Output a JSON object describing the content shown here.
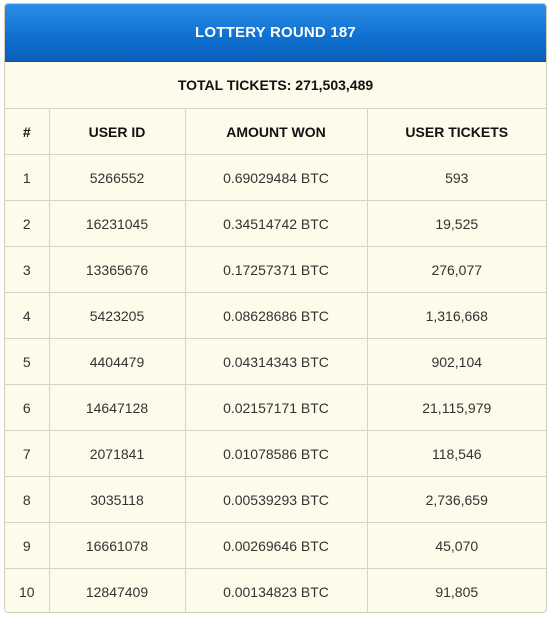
{
  "header": {
    "title": "LOTTERY ROUND 187"
  },
  "summary": {
    "total_tickets": "TOTAL TICKETS: 271,503,489"
  },
  "table": {
    "columns": [
      "#",
      "USER ID",
      "AMOUNT WON",
      "USER TICKETS"
    ],
    "rows": [
      [
        "1",
        "5266552",
        "0.69029484 BTC",
        "593"
      ],
      [
        "2",
        "16231045",
        "0.34514742 BTC",
        "19,525"
      ],
      [
        "3",
        "13365676",
        "0.17257371 BTC",
        "276,077"
      ],
      [
        "4",
        "5423205",
        "0.08628686 BTC",
        "1,316,668"
      ],
      [
        "5",
        "4404479",
        "0.04314343 BTC",
        "902,104"
      ],
      [
        "6",
        "14647128",
        "0.02157171 BTC",
        "21,115,979"
      ],
      [
        "7",
        "2071841",
        "0.01078586 BTC",
        "118,546"
      ],
      [
        "8",
        "3035118",
        "0.00539293 BTC",
        "2,736,659"
      ],
      [
        "9",
        "16661078",
        "0.00269646 BTC",
        "45,070"
      ],
      [
        "10",
        "12847409",
        "0.00134823 BTC",
        "91,805"
      ]
    ]
  },
  "colors": {
    "header_blue": "#0f6fd0",
    "panel_background": "#fdfbea",
    "grid_lines": "#d6d5c2"
  }
}
